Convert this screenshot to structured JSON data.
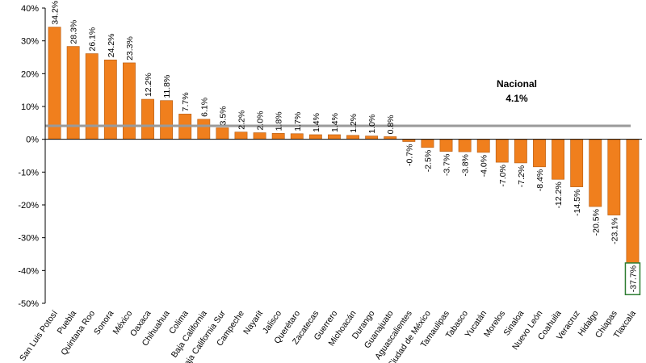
{
  "chart_data": {
    "type": "bar",
    "title": "",
    "xlabel": "",
    "ylabel": "",
    "ylim": [
      -50,
      40
    ],
    "yticks": [
      40,
      30,
      20,
      10,
      0,
      -10,
      -20,
      -30,
      -40,
      -50
    ],
    "ytick_labels": [
      "40%",
      "30%",
      "20%",
      "10%",
      "0%",
      "-10%",
      "-20%",
      "-30%",
      "-40%",
      "-50%"
    ],
    "categories": [
      "San Luis Potosí",
      "Puebla",
      "Quintana Roo",
      "Sonora",
      "México",
      "Oaxaca",
      "Chihuahua",
      "Colima",
      "Baja California",
      "Baja California Sur",
      "Campeche",
      "Nayarit",
      "Jalisco",
      "Querétaro",
      "Zacatecas",
      "Guerrero",
      "Michoacán",
      "Durango",
      "Guanajuato",
      "Aguascalientes",
      "Ciudad de México",
      "Tamaulipas",
      "Tabasco",
      "Yucatán",
      "Morelos",
      "Sinaloa",
      "Nuevo León",
      "Coahuila",
      "Veracruz",
      "Hidalgo",
      "Chiapas",
      "Tlaxcala"
    ],
    "values": [
      34.2,
      28.3,
      26.1,
      24.2,
      23.3,
      12.2,
      11.8,
      7.7,
      6.1,
      3.5,
      2.2,
      2.0,
      1.8,
      1.7,
      1.4,
      1.4,
      1.2,
      1.0,
      0.8,
      -0.7,
      -2.5,
      -3.7,
      -3.8,
      -4.0,
      -7.0,
      -7.2,
      -8.4,
      -12.2,
      -14.5,
      -20.5,
      -23.1,
      -37.7
    ],
    "value_labels": [
      "34.2%",
      "28.3%",
      "26.1%",
      "24.2%",
      "23.3%",
      "12.2%",
      "11.8%",
      "7.7%",
      "6.1%",
      "3.5%",
      "2.2%",
      "2.0%",
      "1.8%",
      "1.7%",
      "1.4%",
      "1.4%",
      "1.2%",
      "1.0%",
      "0.8%",
      "-0.7%",
      "-2.5%",
      "-3.7%",
      "-3.8%",
      "-4.0%",
      "-7.0%",
      "-7.2%",
      "-8.4%",
      "-12.2%",
      "-14.5%",
      "-20.5%",
      "-23.1%",
      "-37.7%"
    ],
    "highlighted_label_index": 31,
    "reference_line": {
      "name": "Nacional",
      "value": 4.1,
      "label": "4.1%"
    },
    "grid": false,
    "legend": "none",
    "colors": {
      "bar": "#F07F1D",
      "bar_edge": "#B35A10",
      "reference_line": "#9a9a9a",
      "highlight_box": "#2E7D32",
      "axis": "#000000"
    }
  }
}
